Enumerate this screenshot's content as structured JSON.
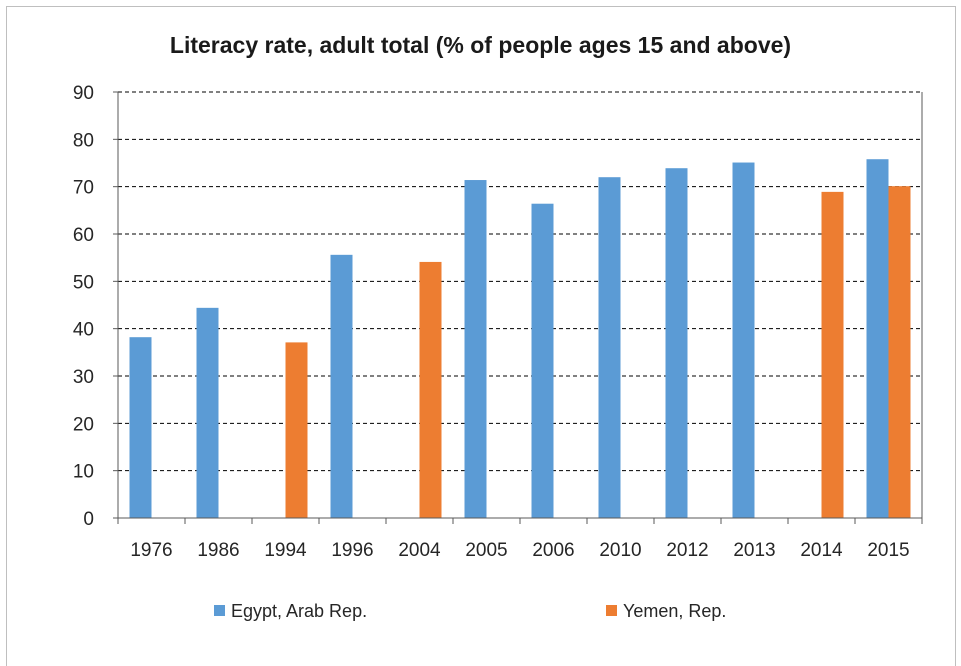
{
  "chart_data": {
    "type": "bar",
    "title": "Literacy rate, adult total (% of people ages 15 and above)",
    "categories": [
      "1976",
      "1986",
      "1994",
      "1996",
      "2004",
      "2005",
      "2006",
      "2010",
      "2012",
      "2013",
      "2014",
      "2015"
    ],
    "series": [
      {
        "name": "Egypt, Arab Rep.",
        "color": "#5b9bd5",
        "values": [
          38.2,
          44.4,
          null,
          55.6,
          null,
          71.4,
          66.4,
          72.0,
          73.9,
          75.1,
          null,
          75.8
        ]
      },
      {
        "name": "Yemen, Rep.",
        "color": "#ed7d31",
        "values": [
          null,
          null,
          37.1,
          null,
          54.1,
          null,
          null,
          null,
          null,
          null,
          68.9,
          70.1
        ]
      }
    ],
    "ylim": [
      0,
      90
    ],
    "yticks": [
      "0",
      "10",
      "20",
      "30",
      "40",
      "50",
      "60",
      "70",
      "80",
      "90"
    ],
    "grid": true,
    "legend_position": "bottom"
  }
}
